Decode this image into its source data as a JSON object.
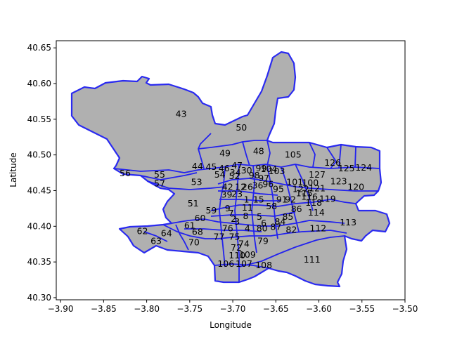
{
  "chart_data": {
    "type": "map",
    "xlabel": "Longitude",
    "ylabel": "Latitude",
    "xlim": [
      -3.905,
      -3.5
    ],
    "ylim": [
      40.297,
      40.66
    ],
    "xticks": [
      "−3.90",
      "−3.85",
      "−3.80",
      "−3.75",
      "−3.70",
      "−3.65",
      "−3.60",
      "−3.55",
      "−3.50"
    ],
    "yticks": [
      "40.30",
      "40.35",
      "40.40",
      "40.45",
      "40.50",
      "40.55",
      "40.60",
      "40.65"
    ],
    "fill_color": "#b0b0b0",
    "edge_color": "#2222ee",
    "regions": [
      {
        "id": "43",
        "lon": -3.76,
        "lat": 40.557
      },
      {
        "id": "50",
        "lon": -3.69,
        "lat": 40.538
      },
      {
        "id": "49",
        "lon": -3.709,
        "lat": 40.502
      },
      {
        "id": "48",
        "lon": -3.67,
        "lat": 40.505
      },
      {
        "id": "105",
        "lon": -3.63,
        "lat": 40.5
      },
      {
        "id": "126",
        "lon": -3.584,
        "lat": 40.489
      },
      {
        "id": "125",
        "lon": -3.568,
        "lat": 40.481
      },
      {
        "id": "124",
        "lon": -3.548,
        "lat": 40.482
      },
      {
        "id": "127",
        "lon": -3.602,
        "lat": 40.472
      },
      {
        "id": "123",
        "lon": -3.577,
        "lat": 40.463
      },
      {
        "id": "120",
        "lon": -3.557,
        "lat": 40.455
      },
      {
        "id": "100",
        "lon": -3.61,
        "lat": 40.461
      },
      {
        "id": "101",
        "lon": -3.628,
        "lat": 40.462
      },
      {
        "id": "121",
        "lon": -3.602,
        "lat": 40.453
      },
      {
        "id": "119",
        "lon": -3.59,
        "lat": 40.438
      },
      {
        "id": "118",
        "lon": -3.606,
        "lat": 40.433
      },
      {
        "id": "116",
        "lon": -3.611,
        "lat": 40.441
      },
      {
        "id": "114",
        "lon": -3.603,
        "lat": 40.419
      },
      {
        "id": "113",
        "lon": -3.566,
        "lat": 40.405
      },
      {
        "id": "112",
        "lon": -3.601,
        "lat": 40.397
      },
      {
        "id": "111",
        "lon": -3.608,
        "lat": 40.353
      },
      {
        "id": "56",
        "lon": -3.825,
        "lat": 40.474
      },
      {
        "id": "55",
        "lon": -3.785,
        "lat": 40.472
      },
      {
        "id": "57",
        "lon": -3.785,
        "lat": 40.46
      },
      {
        "id": "53",
        "lon": -3.742,
        "lat": 40.462
      },
      {
        "id": "44",
        "lon": -3.741,
        "lat": 40.484
      },
      {
        "id": "45",
        "lon": -3.725,
        "lat": 40.483
      },
      {
        "id": "46",
        "lon": -3.71,
        "lat": 40.481
      },
      {
        "id": "47",
        "lon": -3.695,
        "lat": 40.485
      },
      {
        "id": "51",
        "lon": -3.746,
        "lat": 40.432
      },
      {
        "id": "62",
        "lon": -3.805,
        "lat": 40.393
      },
      {
        "id": "63",
        "lon": -3.789,
        "lat": 40.379
      },
      {
        "id": "64",
        "lon": -3.777,
        "lat": 40.39
      },
      {
        "id": "70",
        "lon": -3.745,
        "lat": 40.377
      },
      {
        "id": "68",
        "lon": -3.741,
        "lat": 40.392
      },
      {
        "id": "61",
        "lon": -3.75,
        "lat": 40.401
      },
      {
        "id": "60",
        "lon": -3.738,
        "lat": 40.411
      },
      {
        "id": "59",
        "lon": -3.725,
        "lat": 40.422
      },
      {
        "id": "74",
        "lon": -3.687,
        "lat": 40.375
      },
      {
        "id": "79",
        "lon": -3.665,
        "lat": 40.379
      },
      {
        "id": "82",
        "lon": -3.632,
        "lat": 40.395
      },
      {
        "id": "110",
        "lon": -3.695,
        "lat": 40.359
      },
      {
        "id": "109",
        "lon": -3.683,
        "lat": 40.36
      },
      {
        "id": "106",
        "lon": -3.708,
        "lat": 40.347
      },
      {
        "id": "107",
        "lon": -3.687,
        "lat": 40.347
      },
      {
        "id": "108",
        "lon": -3.664,
        "lat": 40.345
      },
      {
        "id": "103",
        "lon": -3.649,
        "lat": 40.477
      },
      {
        "id": "104",
        "lon": -3.658,
        "lat": 40.48
      },
      {
        "id": "99",
        "lon": -3.667,
        "lat": 40.481
      },
      {
        "id": "98",
        "lon": -3.675,
        "lat": 40.471
      },
      {
        "id": "97",
        "lon": -3.664,
        "lat": 40.467
      },
      {
        "id": "54",
        "lon": -3.715,
        "lat": 40.472
      },
      {
        "id": "34",
        "lon": -3.697,
        "lat": 40.475
      },
      {
        "id": "30",
        "lon": -3.684,
        "lat": 40.478
      },
      {
        "id": "52",
        "lon": -3.698,
        "lat": 40.47
      },
      {
        "id": "36",
        "lon": -3.671,
        "lat": 40.457
      },
      {
        "id": "96",
        "lon": -3.659,
        "lat": 40.459
      },
      {
        "id": "95",
        "lon": -3.647,
        "lat": 40.452
      },
      {
        "id": "42",
        "lon": -3.706,
        "lat": 40.455
      },
      {
        "id": "12",
        "lon": -3.691,
        "lat": 40.455
      },
      {
        "id": "26",
        "lon": -3.683,
        "lat": 40.455
      },
      {
        "id": "23",
        "lon": -3.695,
        "lat": 40.445
      },
      {
        "id": "39",
        "lon": -3.707,
        "lat": 40.444
      },
      {
        "id": "15",
        "lon": -3.67,
        "lat": 40.437
      },
      {
        "id": "91",
        "lon": -3.643,
        "lat": 40.437
      },
      {
        "id": "92",
        "lon": -3.633,
        "lat": 40.437
      },
      {
        "id": "58",
        "lon": -3.655,
        "lat": 40.428
      },
      {
        "id": "86",
        "lon": -3.626,
        "lat": 40.424
      },
      {
        "id": "85",
        "lon": -3.636,
        "lat": 40.413
      },
      {
        "id": "1",
        "lon": -3.684,
        "lat": 40.437
      },
      {
        "id": "9",
        "lon": -3.706,
        "lat": 40.425
      },
      {
        "id": "11",
        "lon": -3.683,
        "lat": 40.426
      },
      {
        "id": "8",
        "lon": -3.685,
        "lat": 40.414
      },
      {
        "id": "7",
        "lon": -3.702,
        "lat": 40.418
      },
      {
        "id": "2",
        "lon": -3.699,
        "lat": 40.41
      },
      {
        "id": "3",
        "lon": -3.695,
        "lat": 40.406
      },
      {
        "id": "5",
        "lon": -3.669,
        "lat": 40.413
      },
      {
        "id": "6",
        "lon": -3.664,
        "lat": 40.404
      },
      {
        "id": "4",
        "lon": -3.683,
        "lat": 40.397
      },
      {
        "id": "76",
        "lon": -3.706,
        "lat": 40.397
      },
      {
        "id": "77",
        "lon": -3.716,
        "lat": 40.385
      },
      {
        "id": "75",
        "lon": -3.698,
        "lat": 40.385
      },
      {
        "id": "72",
        "lon": -3.696,
        "lat": 40.37
      },
      {
        "id": "80",
        "lon": -3.666,
        "lat": 40.397
      },
      {
        "id": "84",
        "lon": -3.645,
        "lat": 40.406
      },
      {
        "id": "87",
        "lon": -3.65,
        "lat": 40.399
      },
      {
        "id": "122",
        "lon": -3.621,
        "lat": 40.452
      },
      {
        "id": "115",
        "lon": -3.617,
        "lat": 40.446
      }
    ]
  }
}
